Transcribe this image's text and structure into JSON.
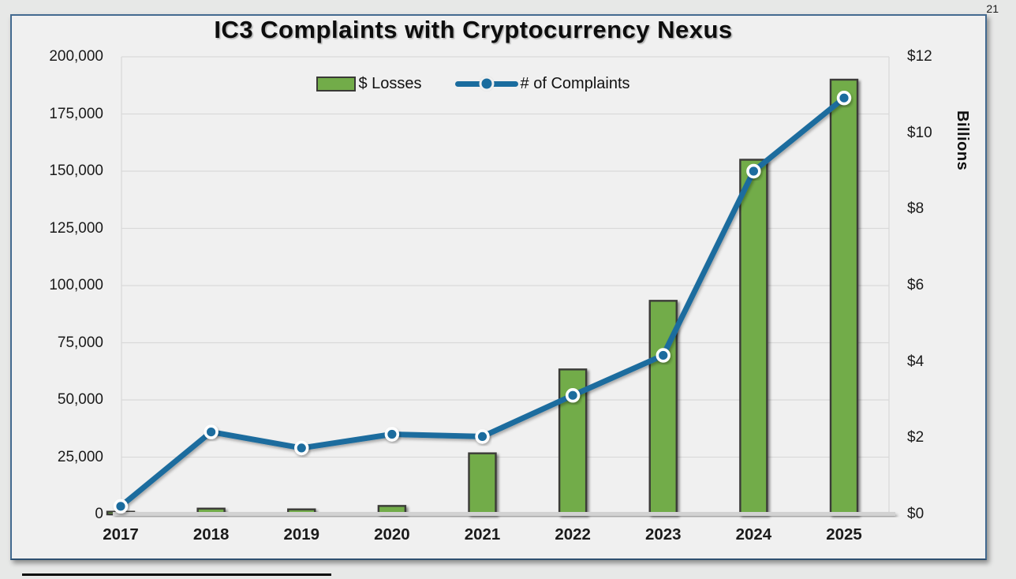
{
  "page": {
    "number": "21"
  },
  "chart": {
    "title": "IC3 Complaints with Cryptocurrency Nexus",
    "legend": [
      {
        "label": "$ Losses",
        "swatch_color": "#72AC49"
      },
      {
        "label": "# of Complaints",
        "line_color": "#1A6C9E"
      }
    ]
  },
  "chart_data": {
    "type": "bar+line combo",
    "title": "IC3 Complaints with Cryptocurrency Nexus",
    "categories": [
      "2017",
      "2018",
      "2019",
      "2020",
      "2021",
      "2022",
      "2023",
      "2024",
      "2025"
    ],
    "series": [
      {
        "name": "$ Losses",
        "type": "bar",
        "axis": "right",
        "unit": "USD billions",
        "values": [
          0.07,
          0.15,
          0.13,
          0.22,
          1.6,
          3.8,
          5.6,
          9.3,
          11.4
        ],
        "color": "#72AC49",
        "border_color": "#3a3a37"
      },
      {
        "name": "# of Complaints",
        "type": "line",
        "axis": "left",
        "values": [
          3500,
          36000,
          29000,
          35000,
          34000,
          52000,
          69500,
          150000,
          182000
        ],
        "color": "#1A6C9E",
        "marker": "circle-white-ring"
      }
    ],
    "left_axis": {
      "range": [
        0,
        200000
      ],
      "tick_labels": [
        "200,000",
        "175,000",
        "150,000",
        "125,000",
        "100,000",
        "75,000",
        "50,000",
        "25,000",
        "0"
      ]
    },
    "right_axis": {
      "title": "Billions",
      "range": [
        0,
        12
      ],
      "tick_labels": [
        "$12",
        "$10",
        "$8",
        "$6",
        "$4",
        "$2",
        "$0"
      ]
    },
    "grid": "horizontal",
    "gridline_color": "#d9d9d9",
    "background": "#f0f0f0",
    "legend_position": "top-center"
  }
}
